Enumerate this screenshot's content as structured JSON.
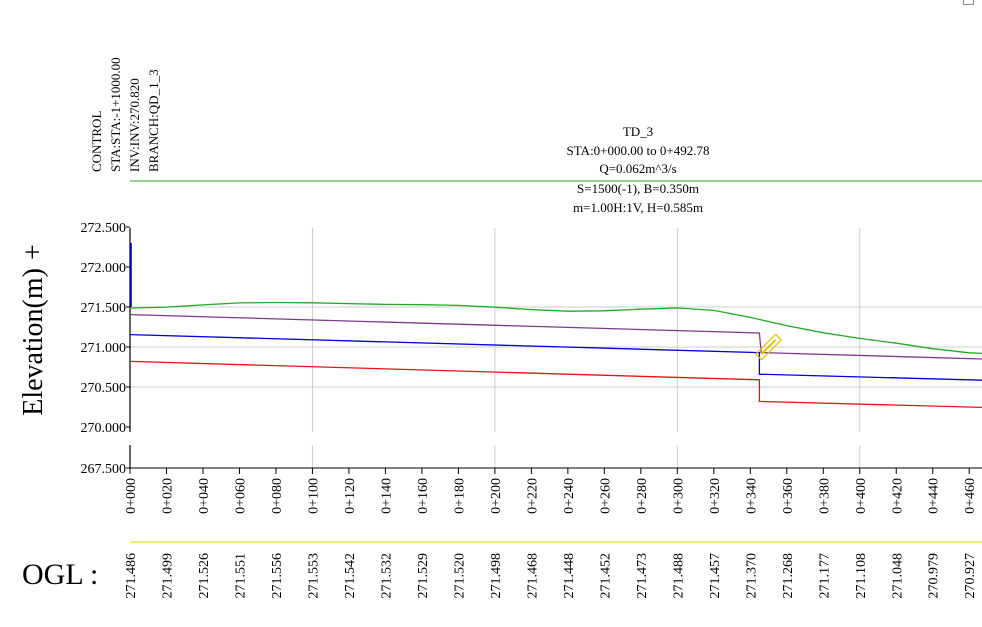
{
  "control": {
    "lines": [
      "CONTROL",
      "STA:STA:-1+1000.00",
      "INV:INV:270.820",
      "BRANCH:QD_1_3"
    ]
  },
  "info": {
    "lines": [
      "TD_3",
      "STA:0+000.00 to 0+492.78",
      "Q=0.062m^3/s",
      "S=1500(-1), B=0.350m",
      "m=1.00H:1V, H=0.585m"
    ]
  },
  "ylabel": "Elevation(m)",
  "ylabel_suffix": "+",
  "ogl_title": "OGL :",
  "colors": {
    "ground": "#22aa22",
    "bank": "#7a3a8a",
    "water": "#0000dd",
    "invert": "#ee1111",
    "grid": "#cccccc",
    "control_line": "#22aa22",
    "ogl_baseline": "#e8d000",
    "marker": "#e6c000"
  },
  "chart_data": {
    "type": "line",
    "x_unit": "station (m)",
    "xlim": [
      0,
      467
    ],
    "ylim": [
      270.0,
      272.5
    ],
    "yticks": [
      {
        "label": "272.500",
        "value": 272.5
      },
      {
        "label": "272.000",
        "value": 272.0
      },
      {
        "label": "271.500",
        "value": 271.5
      },
      {
        "label": "271.000",
        "value": 271.0
      },
      {
        "label": "270.500",
        "value": 270.5
      },
      {
        "label": "270.000",
        "value": 270.0
      }
    ],
    "axis_break_label": "267.500",
    "xtick_labels": [
      "0+000",
      "0+020",
      "0+040",
      "0+060",
      "0+080",
      "0+100",
      "0+120",
      "0+140",
      "0+160",
      "0+180",
      "0+200",
      "0+220",
      "0+240",
      "0+260",
      "0+280",
      "0+300",
      "0+320",
      "0+340",
      "0+360",
      "0+380",
      "0+400",
      "0+420",
      "0+440",
      "0+460"
    ],
    "xtick_values": [
      0,
      20,
      40,
      60,
      80,
      100,
      120,
      140,
      160,
      180,
      200,
      220,
      240,
      260,
      280,
      300,
      320,
      340,
      360,
      380,
      400,
      420,
      440,
      460
    ],
    "vgrid_values": [
      100,
      200,
      300,
      400
    ],
    "hgrid_values": [
      271.5,
      271.0,
      270.5
    ],
    "ogl": {
      "x": [
        0,
        20,
        40,
        60,
        80,
        100,
        120,
        140,
        160,
        180,
        200,
        220,
        240,
        260,
        280,
        300,
        320,
        340,
        360,
        380,
        400,
        420,
        440,
        460
      ],
      "labels": [
        "271.486",
        "271.499",
        "271.526",
        "271.551",
        "271.556",
        "271.553",
        "271.542",
        "271.532",
        "271.529",
        "271.520",
        "271.498",
        "271.468",
        "271.448",
        "271.452",
        "271.473",
        "271.488",
        "271.457",
        "271.370",
        "271.268",
        "271.177",
        "271.108",
        "271.048",
        "270.979",
        "270.927"
      ]
    },
    "series": [
      {
        "key": "ground",
        "x": [
          0,
          20,
          40,
          60,
          80,
          100,
          120,
          140,
          160,
          180,
          200,
          220,
          240,
          260,
          280,
          300,
          320,
          340,
          360,
          380,
          400,
          420,
          440,
          460,
          467
        ],
        "y": [
          271.486,
          271.499,
          271.526,
          271.551,
          271.556,
          271.553,
          271.542,
          271.532,
          271.529,
          271.52,
          271.498,
          271.468,
          271.448,
          271.452,
          271.473,
          271.488,
          271.457,
          271.37,
          271.268,
          271.177,
          271.108,
          271.048,
          270.979,
          270.927,
          270.92
        ]
      },
      {
        "key": "bank",
        "x": [
          0,
          345,
          346,
          467
        ],
        "y": [
          271.405,
          271.175,
          270.93,
          270.85
        ]
      },
      {
        "key": "water",
        "x": [
          0,
          345,
          345,
          467
        ],
        "y": [
          271.155,
          270.93,
          270.66,
          270.585
        ]
      },
      {
        "key": "invert",
        "x": [
          0,
          345,
          345,
          467
        ],
        "y": [
          270.82,
          270.59,
          270.32,
          270.245
        ]
      }
    ],
    "left_stub": {
      "x": 0,
      "y": [
        271.5,
        272.3
      ]
    },
    "marker_x": 350
  }
}
